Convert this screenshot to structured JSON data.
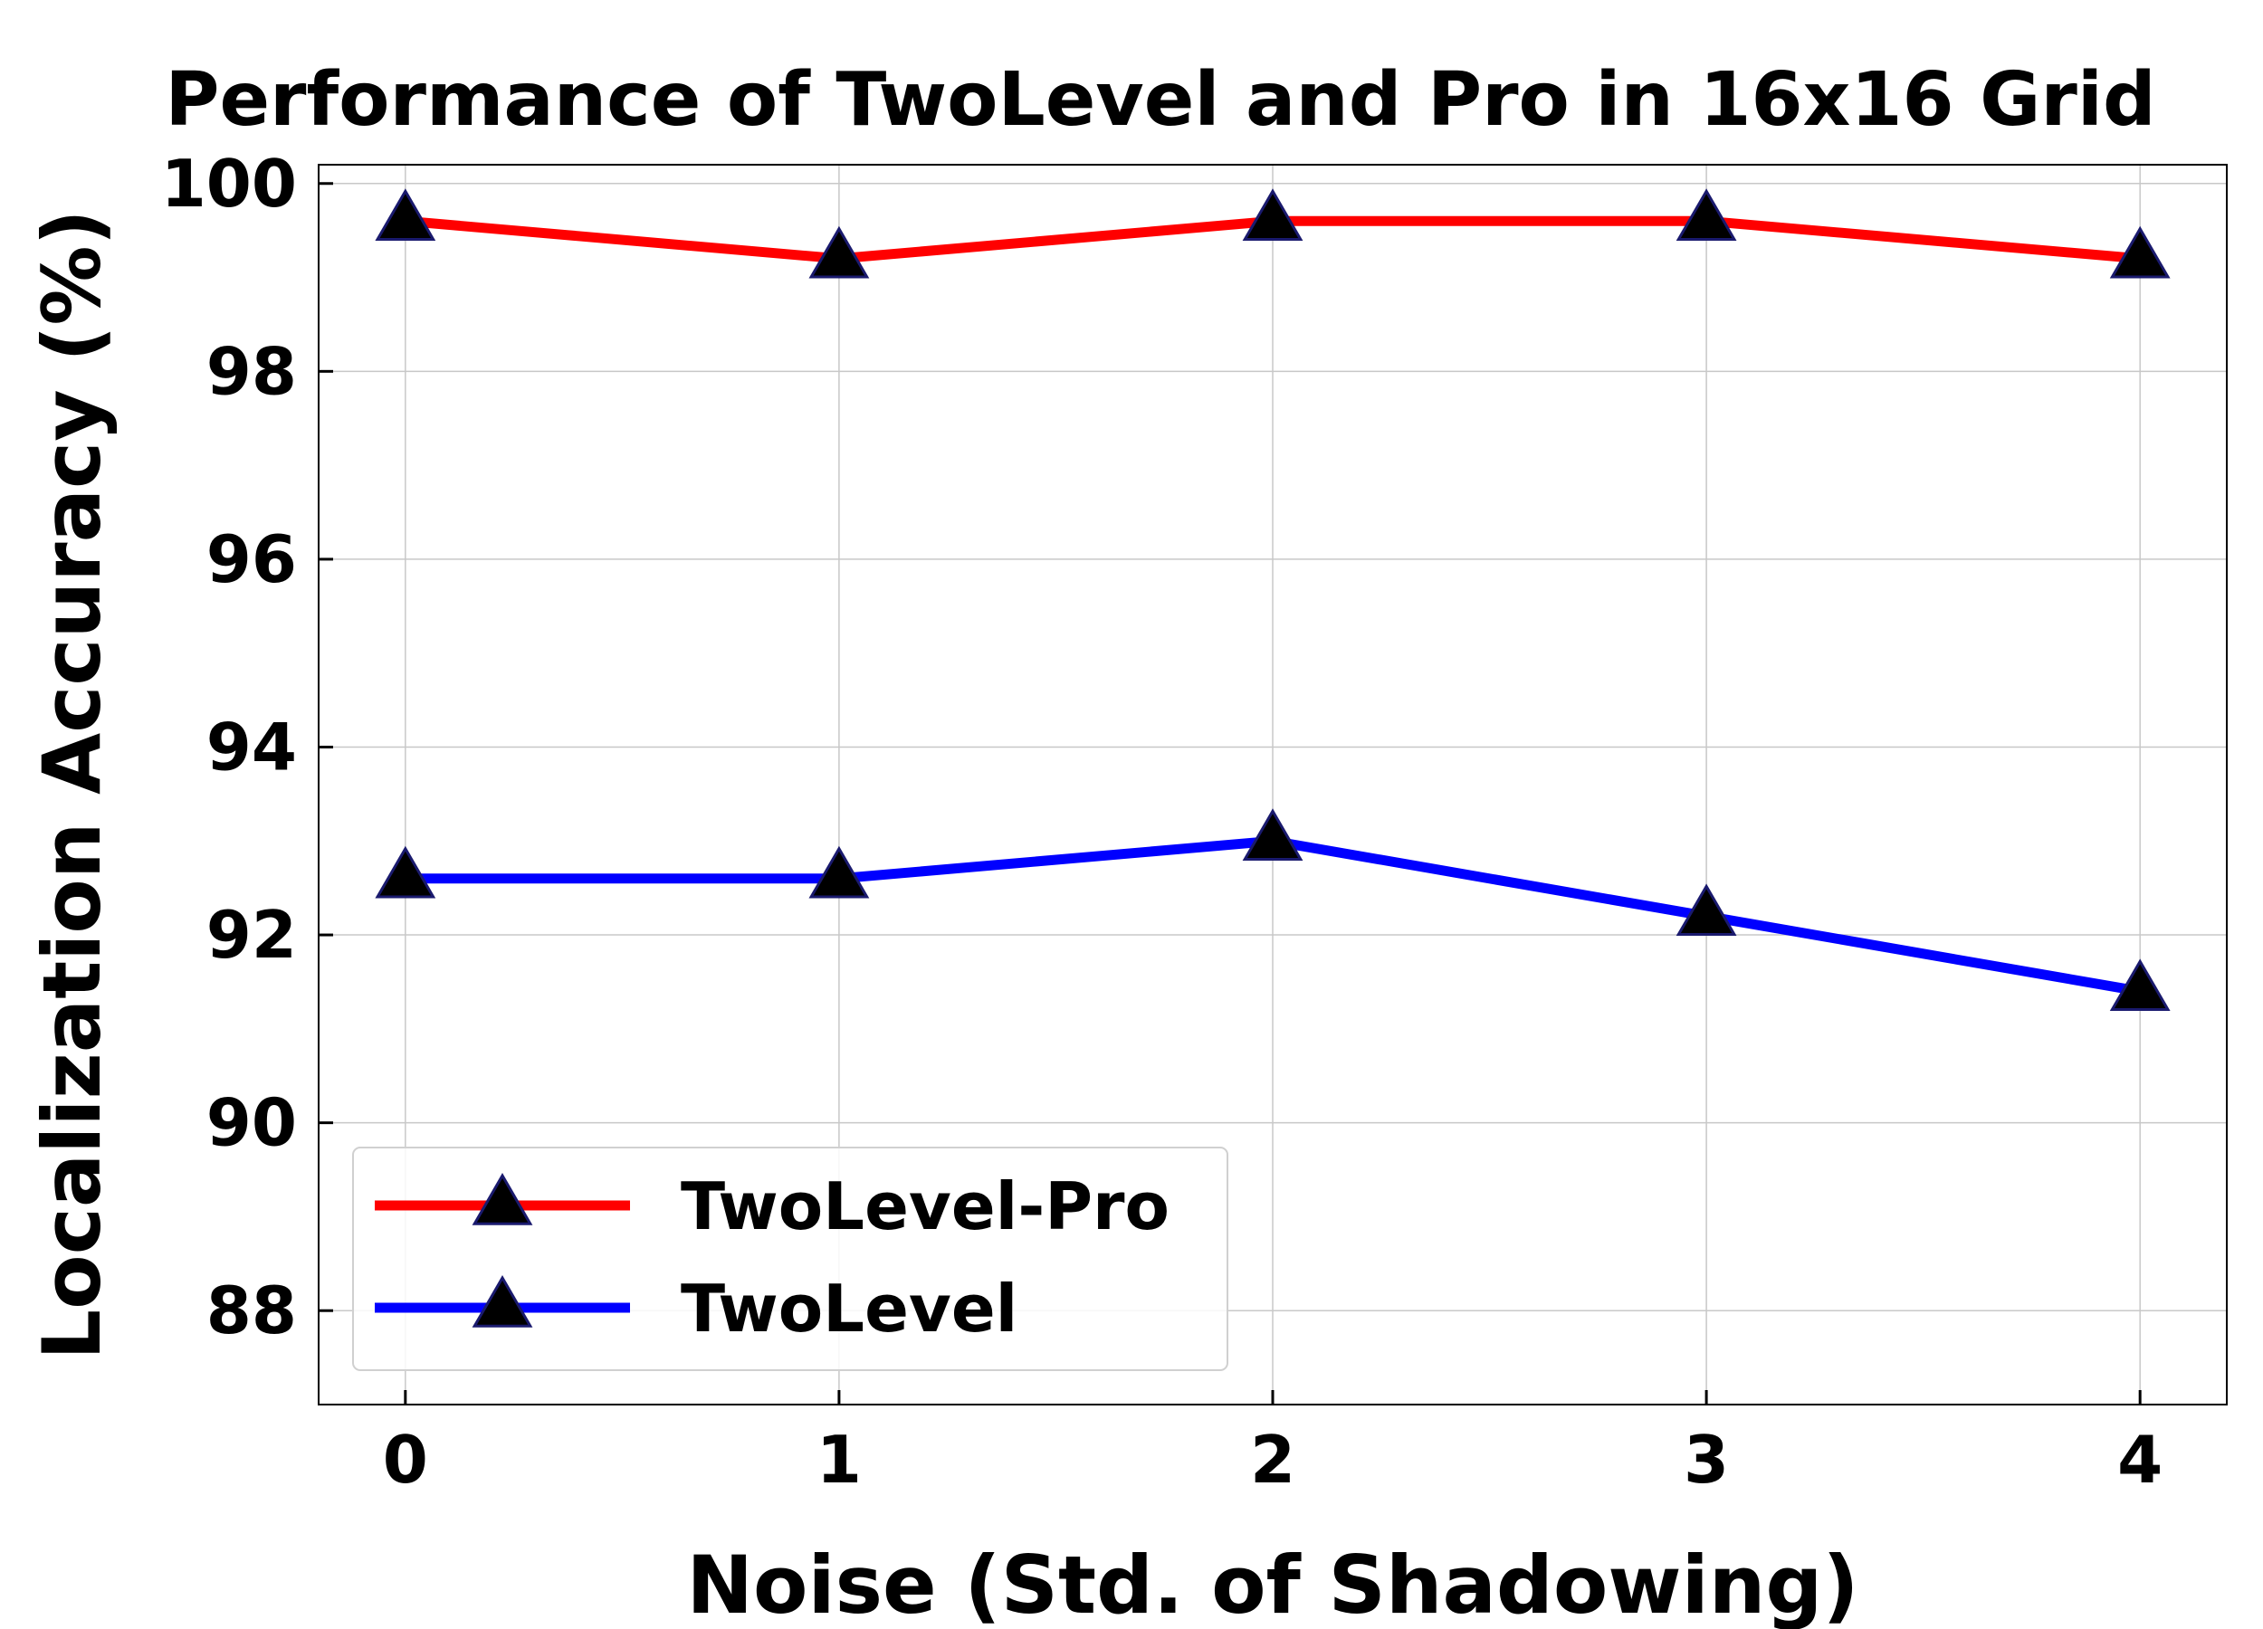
{
  "chart_data": {
    "type": "line",
    "title": "Performance of TwoLevel and Pro in 16x16 Grid",
    "xlabel": "Noise (Std. of Shadowing)",
    "ylabel": "Localization Accuracy (%)",
    "x": [
      0,
      1,
      2,
      3,
      4
    ],
    "x_tick_labels": [
      "0",
      "1",
      "2",
      "3",
      "4"
    ],
    "y_ticks": [
      88,
      90,
      92,
      94,
      96,
      98,
      100
    ],
    "y_tick_labels": [
      "88",
      "90",
      "92",
      "94",
      "96",
      "98",
      "100"
    ],
    "xlim": [
      -0.2,
      4.2
    ],
    "ylim": [
      87,
      100.2
    ],
    "grid": true,
    "legend_position": "lower-left",
    "series": [
      {
        "name": "TwoLevel-Pro",
        "color": "#ff0000",
        "marker": "triangle",
        "values": [
          99.6,
          99.2,
          99.6,
          99.6,
          99.2
        ]
      },
      {
        "name": "TwoLevel",
        "color": "#0000ff",
        "marker": "triangle",
        "values": [
          92.6,
          92.6,
          93.0,
          92.2,
          91.4
        ]
      }
    ]
  }
}
